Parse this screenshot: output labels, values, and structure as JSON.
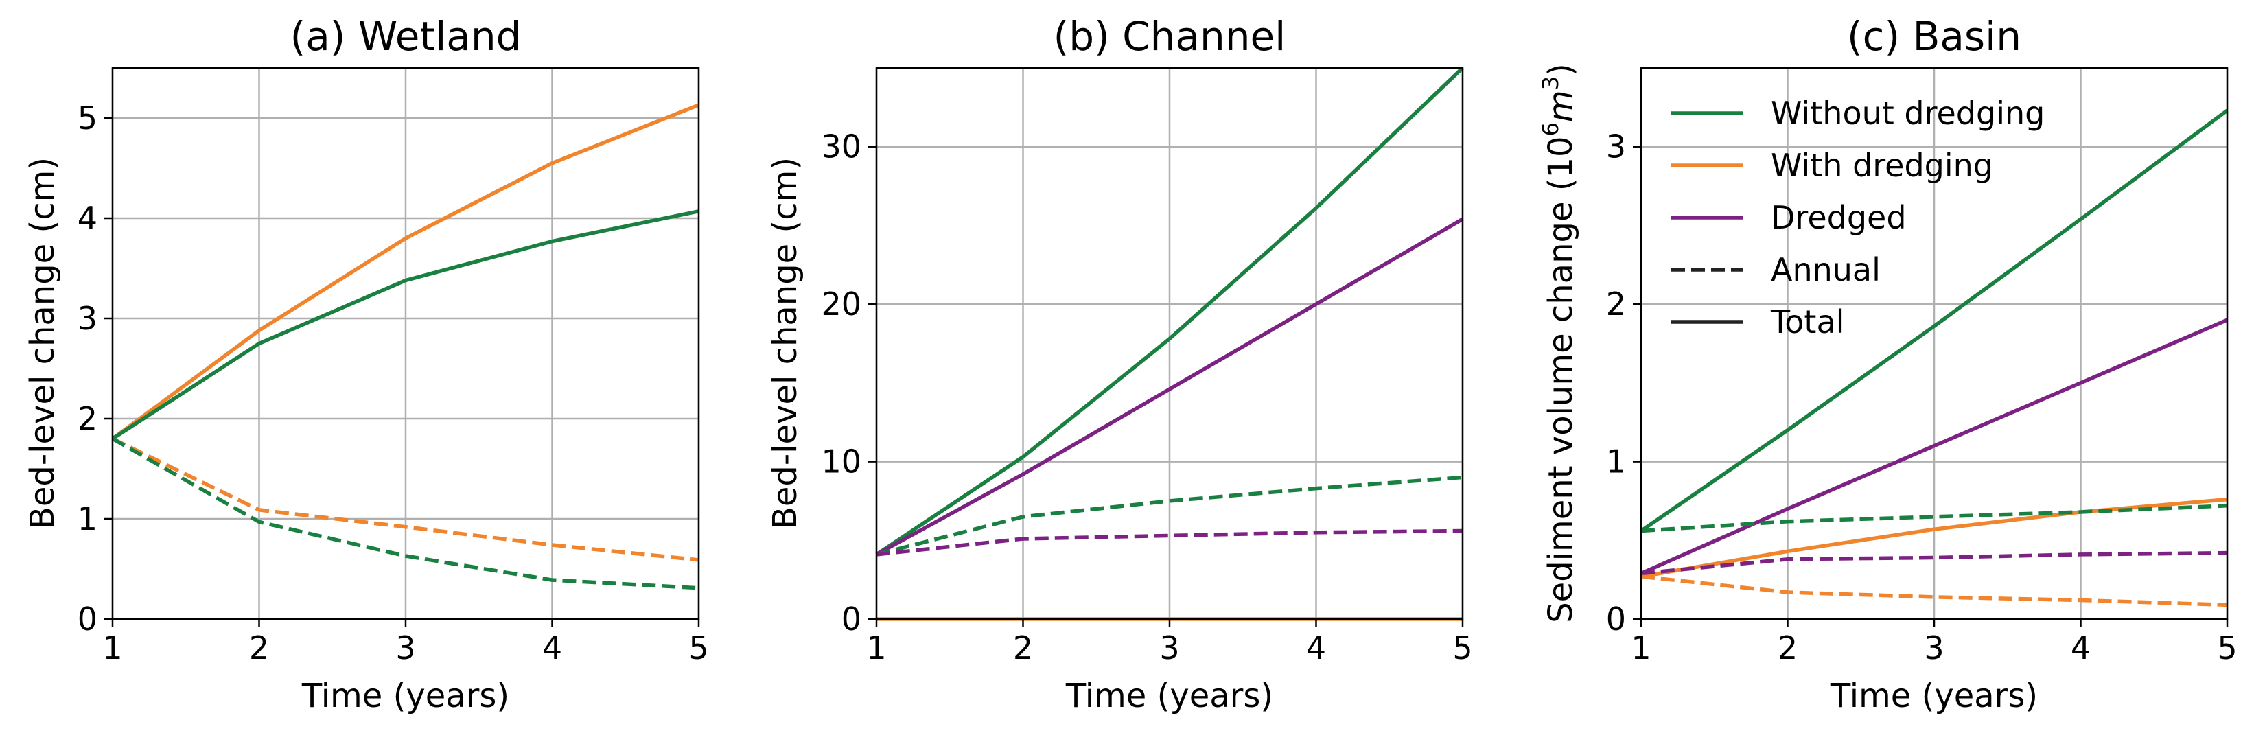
{
  "colors": {
    "without_dredging": "#1a8041",
    "with_dredging": "#f0852d",
    "dredged": "#7b2283",
    "neutral": "#222222"
  },
  "legend": {
    "placement": "upper-left of panel (c)",
    "entries": [
      {
        "label": "Without dredging",
        "color": "#1a8041",
        "style": "solid"
      },
      {
        "label": "With dredging",
        "color": "#f0852d",
        "style": "solid"
      },
      {
        "label": "Dredged",
        "color": "#7b2283",
        "style": "solid"
      },
      {
        "label": "Annual",
        "color": "#222222",
        "style": "dashed"
      },
      {
        "label": "Total",
        "color": "#222222",
        "style": "solid"
      }
    ]
  },
  "chart_data": [
    {
      "type": "line",
      "title": "(a) Wetland",
      "xlabel": "Time (years)",
      "ylabel": "Bed-level change (cm)",
      "xlim": [
        1,
        5
      ],
      "ylim": [
        0,
        5.5
      ],
      "xticks": [
        1,
        2,
        3,
        4,
        5
      ],
      "yticks": [
        0,
        1,
        2,
        3,
        4,
        5
      ],
      "grid": true,
      "x": [
        1,
        2,
        3,
        4,
        5
      ],
      "series": [
        {
          "key": "with_dredging",
          "style": "solid",
          "values": [
            1.8,
            2.88,
            3.8,
            4.55,
            5.13
          ]
        },
        {
          "key": "without_dredging",
          "style": "solid",
          "values": [
            1.8,
            2.75,
            3.38,
            3.77,
            4.07
          ]
        },
        {
          "key": "with_dredging",
          "style": "dashed",
          "values": [
            1.8,
            1.09,
            0.92,
            0.74,
            0.59
          ]
        },
        {
          "key": "without_dredging",
          "style": "dashed",
          "values": [
            1.8,
            0.97,
            0.63,
            0.39,
            0.31
          ]
        }
      ]
    },
    {
      "type": "line",
      "title": "(b) Channel",
      "xlabel": "Time (years)",
      "ylabel": "Bed-level change (cm)",
      "xlim": [
        1,
        5
      ],
      "ylim": [
        0,
        35
      ],
      "xticks": [
        1,
        2,
        3,
        4,
        5
      ],
      "yticks": [
        0,
        10,
        20,
        30
      ],
      "grid": true,
      "x": [
        1,
        2,
        3,
        4,
        5
      ],
      "series": [
        {
          "key": "with_dredging",
          "style": "solid",
          "values": [
            0,
            0,
            0,
            0,
            0
          ]
        },
        {
          "key": "without_dredging",
          "style": "solid",
          "values": [
            4.1,
            10.3,
            17.8,
            26.1,
            35.0
          ]
        },
        {
          "key": "dredged",
          "style": "solid",
          "values": [
            4.1,
            9.2,
            14.6,
            20.0,
            25.4
          ]
        },
        {
          "key": "without_dredging",
          "style": "dashed",
          "values": [
            4.1,
            6.5,
            7.5,
            8.3,
            9.0
          ]
        },
        {
          "key": "dredged",
          "style": "dashed",
          "values": [
            4.1,
            5.1,
            5.3,
            5.5,
            5.6
          ]
        }
      ]
    },
    {
      "type": "line",
      "title": "(c) Basin",
      "xlabel": "Time (years)",
      "ylabel_main": "Sediment volume change (10",
      "ylabel_sup1": "6",
      "ylabel_mid": "m",
      "ylabel_sup2": "3",
      "ylabel_end": ")",
      "xlim": [
        1,
        5
      ],
      "ylim": [
        0,
        3.5
      ],
      "xticks": [
        1,
        2,
        3,
        4,
        5
      ],
      "yticks": [
        0,
        1,
        2,
        3
      ],
      "grid": true,
      "x": [
        1,
        2,
        3,
        4,
        5
      ],
      "series": [
        {
          "key": "without_dredging",
          "style": "solid",
          "values": [
            0.56,
            1.2,
            1.86,
            2.54,
            3.23
          ]
        },
        {
          "key": "dredged",
          "style": "solid",
          "values": [
            0.29,
            0.7,
            1.1,
            1.5,
            1.9
          ]
        },
        {
          "key": "with_dredging",
          "style": "solid",
          "values": [
            0.27,
            0.43,
            0.57,
            0.68,
            0.76
          ]
        },
        {
          "key": "without_dredging",
          "style": "dashed",
          "values": [
            0.56,
            0.62,
            0.65,
            0.68,
            0.72
          ]
        },
        {
          "key": "dredged",
          "style": "dashed",
          "values": [
            0.29,
            0.38,
            0.39,
            0.41,
            0.42
          ]
        },
        {
          "key": "with_dredging",
          "style": "dashed",
          "values": [
            0.27,
            0.17,
            0.14,
            0.12,
            0.09
          ]
        }
      ]
    }
  ]
}
